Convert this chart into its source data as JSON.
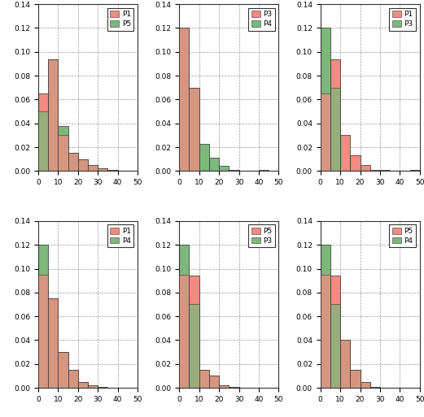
{
  "subplots": [
    {
      "legend": [
        "P1",
        "P5"
      ],
      "s1": [
        0.065,
        0.094,
        0.03,
        0.015,
        0.01,
        0.005,
        0.002,
        0.001,
        0.0,
        0.0
      ],
      "s2": [
        0.05,
        0.094,
        0.038,
        0.015,
        0.01,
        0.005,
        0.002,
        0.001,
        0.0,
        0.0
      ]
    },
    {
      "legend": [
        "P3",
        "P4"
      ],
      "s1": [
        0.12,
        0.07,
        0.023,
        0.011,
        0.004,
        0.001,
        0.0,
        0.0,
        0.001,
        0.0
      ],
      "s2": [
        0.12,
        0.07,
        0.023,
        0.011,
        0.004,
        0.001,
        0.0,
        0.0,
        0.001,
        0.0
      ]
    },
    {
      "legend": [
        "P1",
        "P3"
      ],
      "s1": [
        0.065,
        0.094,
        0.03,
        0.013,
        0.005,
        0.001,
        0.001,
        0.0,
        0.0,
        0.001
      ],
      "s2": [
        0.12,
        0.07,
        0.0,
        0.0,
        0.0,
        0.0,
        0.0,
        0.0,
        0.0,
        0.001
      ]
    },
    {
      "legend": [
        "P1",
        "P4"
      ],
      "s1": [
        0.095,
        0.075,
        0.03,
        0.015,
        0.005,
        0.002,
        0.001,
        0.0,
        0.0,
        0.0
      ],
      "s2": [
        0.12,
        0.075,
        0.03,
        0.015,
        0.005,
        0.002,
        0.001,
        0.0,
        0.0,
        0.0
      ]
    },
    {
      "legend": [
        "P5",
        "P3"
      ],
      "s1": [
        0.095,
        0.094,
        0.015,
        0.01,
        0.002,
        0.001,
        0.0,
        0.0,
        0.0,
        0.0
      ],
      "s2": [
        0.12,
        0.07,
        0.015,
        0.01,
        0.002,
        0.001,
        0.0,
        0.0,
        0.0,
        0.0
      ]
    },
    {
      "legend": [
        "P5",
        "P4"
      ],
      "s1": [
        0.095,
        0.094,
        0.04,
        0.015,
        0.005,
        0.001,
        0.0,
        0.0,
        0.0,
        0.0
      ],
      "s2": [
        0.12,
        0.07,
        0.04,
        0.015,
        0.005,
        0.001,
        0.0,
        0.0,
        0.0,
        0.0
      ]
    }
  ],
  "color_pink": "#f28b82",
  "color_green": "#7cb87c",
  "color_overlap": "#6b6b1a",
  "bins": [
    0,
    5,
    10,
    15,
    20,
    25,
    30,
    35,
    40,
    45,
    50
  ],
  "xlim": [
    0,
    50
  ],
  "ylim": [
    0,
    0.14
  ],
  "yticks": [
    0.0,
    0.02,
    0.04,
    0.06,
    0.08,
    0.1,
    0.12,
    0.14
  ],
  "xticks": [
    0,
    10,
    20,
    30,
    40,
    50
  ],
  "grid_color": "#999999",
  "bg_color": "#ffffff"
}
